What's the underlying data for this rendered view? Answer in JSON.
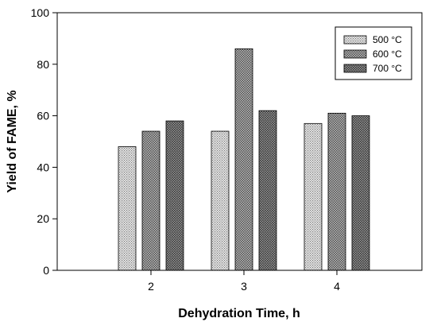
{
  "chart_data": {
    "type": "bar",
    "xlabel": "Dehydration Time, h",
    "ylabel": "Yield of FAME, %",
    "categories": [
      "2",
      "3",
      "4"
    ],
    "ylim": [
      0,
      100
    ],
    "yticks": [
      "0",
      "20",
      "40",
      "60",
      "80",
      "100"
    ],
    "grid": false,
    "legend_position": "top-right",
    "series": [
      {
        "name": "500 °C",
        "values": [
          48,
          54,
          57
        ],
        "pattern": "light-dots",
        "color": "#c4c4c4"
      },
      {
        "name": "600 °C",
        "values": [
          54,
          86,
          61
        ],
        "pattern": "medium-dots",
        "color": "#9e9e9e"
      },
      {
        "name": "700 °C",
        "values": [
          58,
          62,
          60
        ],
        "pattern": "dark-dots",
        "color": "#858585"
      }
    ]
  }
}
